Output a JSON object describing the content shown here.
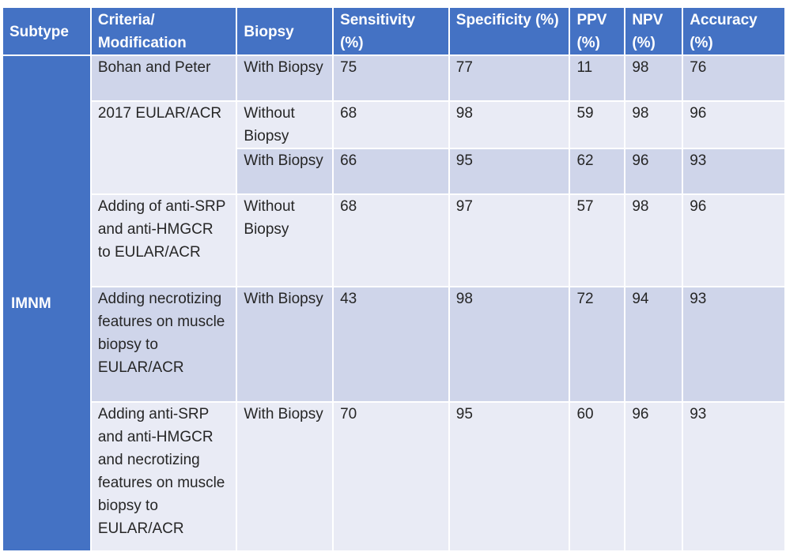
{
  "headers": {
    "subtype": "Subtype",
    "criteria": "Criteria/ Modification",
    "biopsy": "Biopsy",
    "sensitivity": "Sensitivity (%)",
    "specificity": "Specificity (%)",
    "ppv": "PPV (%)",
    "npv": "NPV (%)",
    "accuracy": "Accuracy (%)"
  },
  "subtype": "IMNM",
  "rows": [
    {
      "criteria": "Bohan and Peter",
      "biopsy": "With Biopsy",
      "sensitivity": "75",
      "specificity": "77",
      "ppv": "11",
      "npv": "98",
      "accuracy": "76"
    },
    {
      "criteria": "2017 EULAR/ACR",
      "biopsy": "Without Biopsy",
      "sensitivity": "68",
      "specificity": "98",
      "ppv": "59",
      "npv": "98",
      "accuracy": "96"
    },
    {
      "criteria": "",
      "biopsy": "With Biopsy",
      "sensitivity": "66",
      "specificity": "95",
      "ppv": "62",
      "npv": "96",
      "accuracy": "93"
    },
    {
      "criteria": "Adding of anti-SRP and anti-HMGCR to EULAR/ACR",
      "biopsy": "Without Biopsy",
      "sensitivity": "68",
      "specificity": "97",
      "ppv": "57",
      "npv": "98",
      "accuracy": "96"
    },
    {
      "criteria": "Adding necrotizing features on muscle biopsy to EULAR/ACR",
      "biopsy": "With Biopsy",
      "sensitivity": "43",
      "specificity": "98",
      "ppv": "72",
      "npv": "94",
      "accuracy": "93"
    },
    {
      "criteria": "Adding anti-SRP and anti-HMGCR and necrotizing features on muscle biopsy to EULAR/ACR",
      "biopsy": "With Biopsy",
      "sensitivity": "70",
      "specificity": "95",
      "ppv": "60",
      "npv": "96",
      "accuracy": "93"
    }
  ]
}
